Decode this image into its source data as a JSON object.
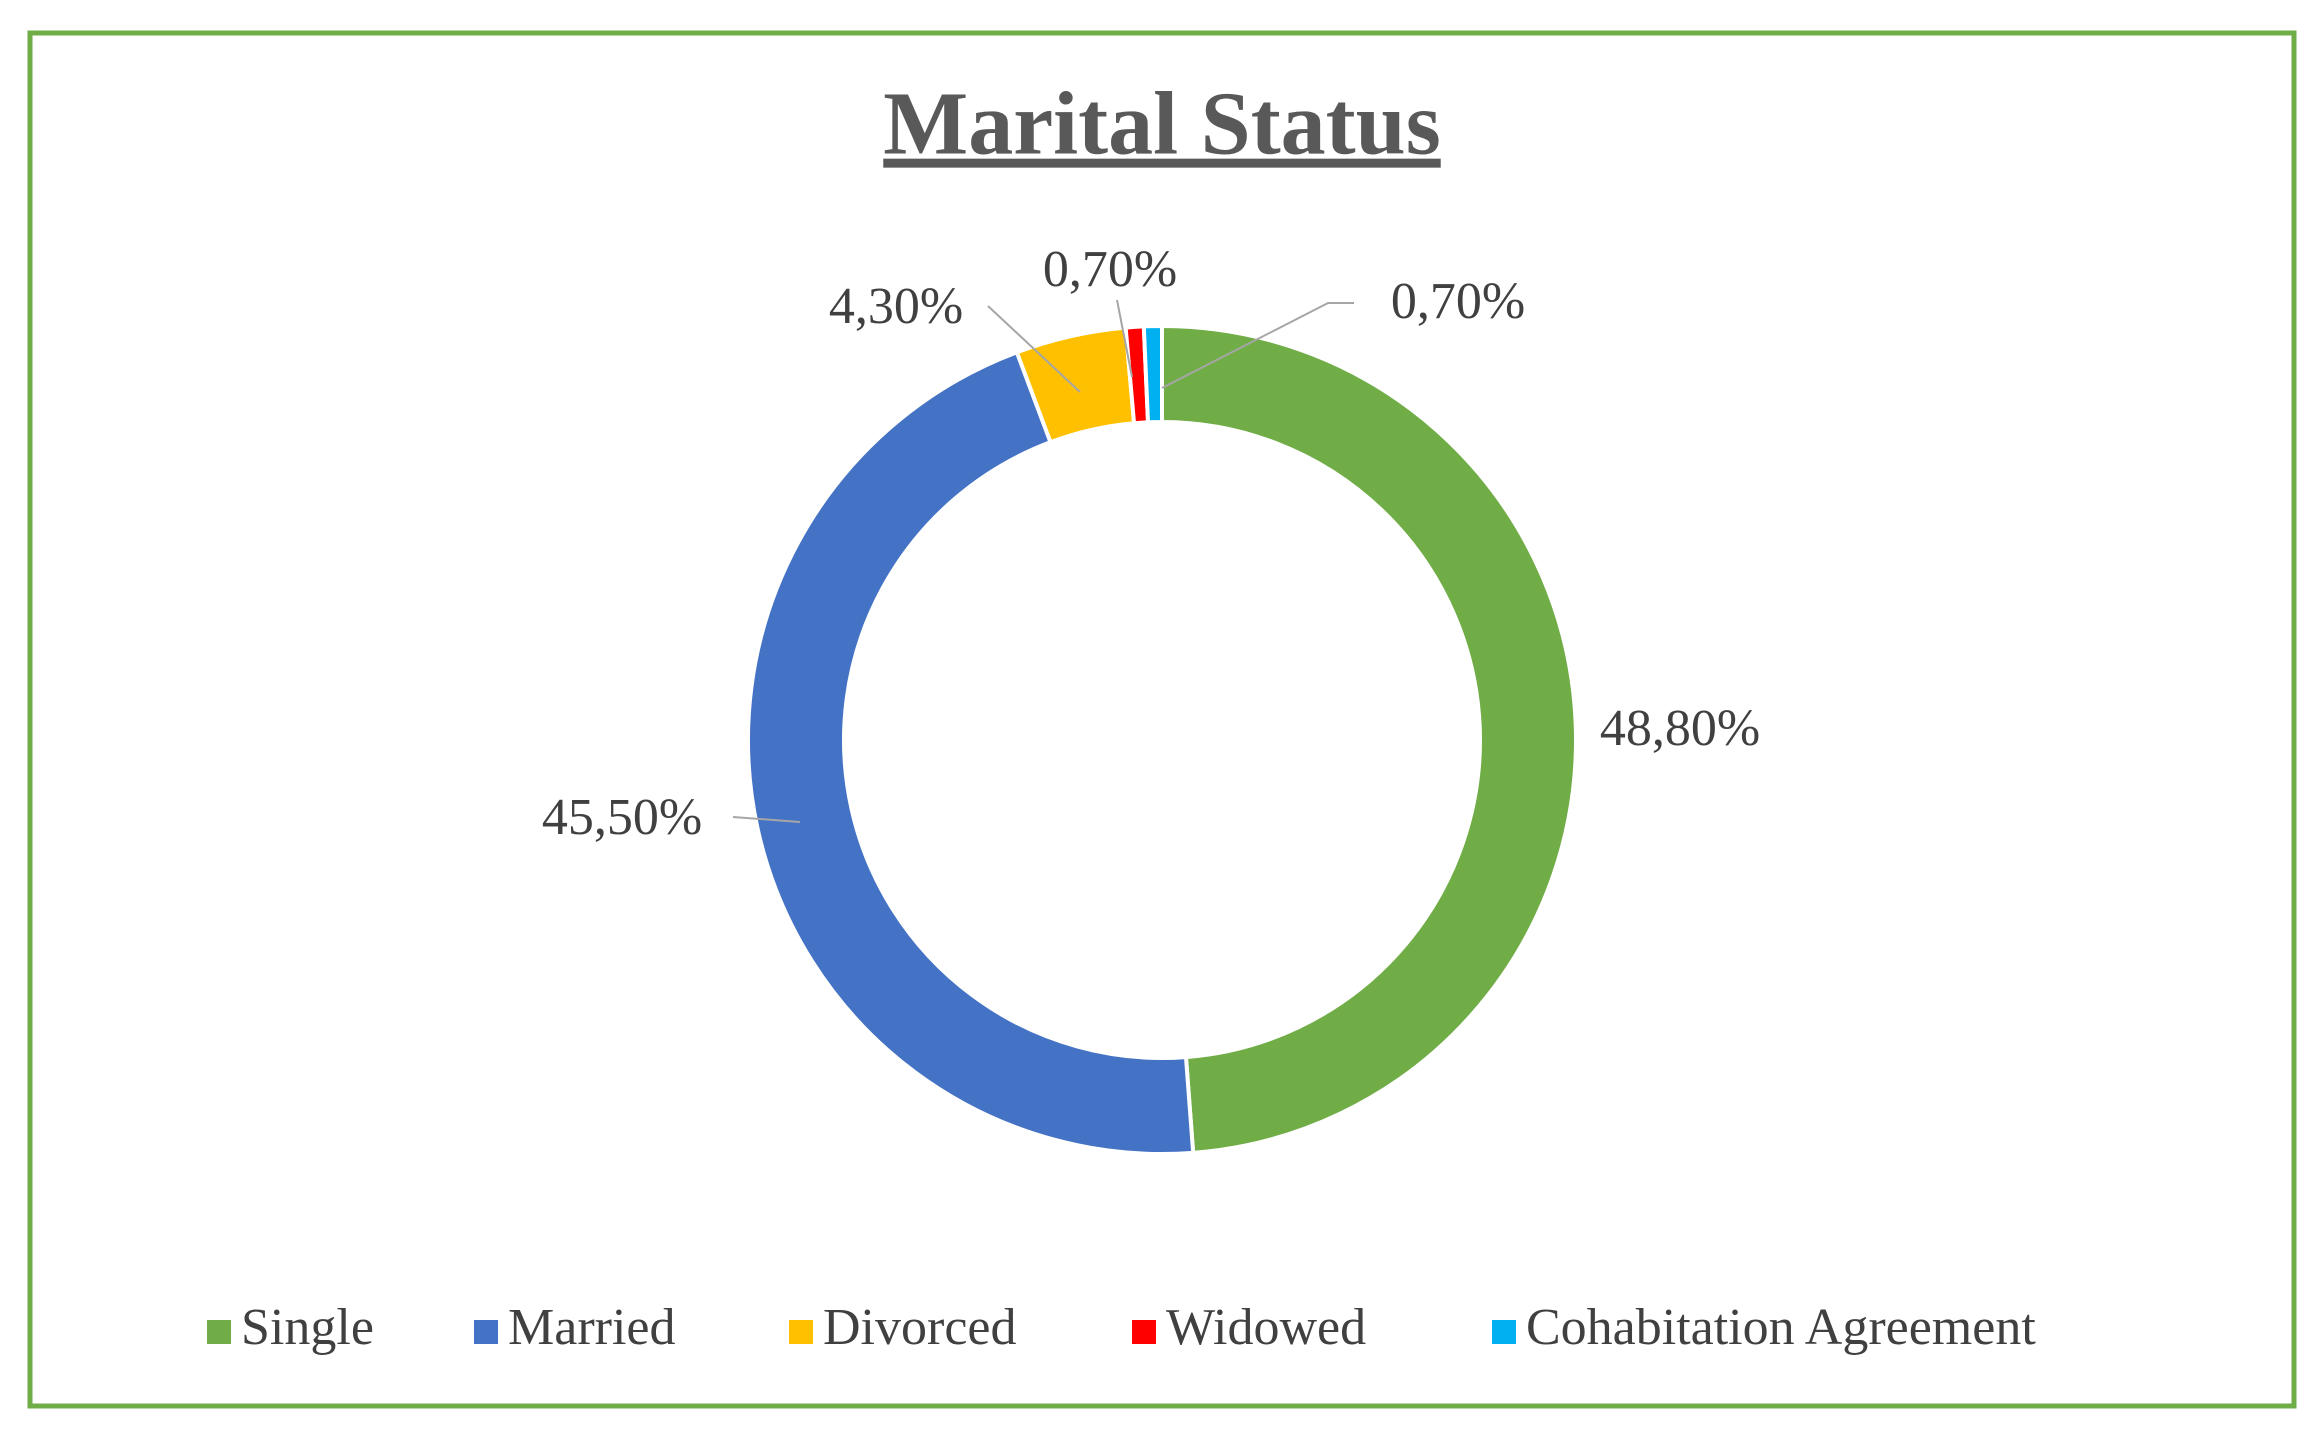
{
  "chart_data": {
    "type": "donut",
    "title": "Marital Status",
    "categories": [
      "Single",
      "Married",
      "Divorced",
      "Widowed",
      "Cohabitation Agreement"
    ],
    "values": [
      48.8,
      45.5,
      4.3,
      0.7,
      0.7
    ],
    "value_labels": [
      "48,80%",
      "45,50%",
      "4,30%",
      "0,70%",
      "0,70%"
    ],
    "colors": [
      "#70ad47",
      "#4472c4",
      "#ffc000",
      "#ff0000",
      "#00b0f0"
    ],
    "legend": "bottom"
  }
}
